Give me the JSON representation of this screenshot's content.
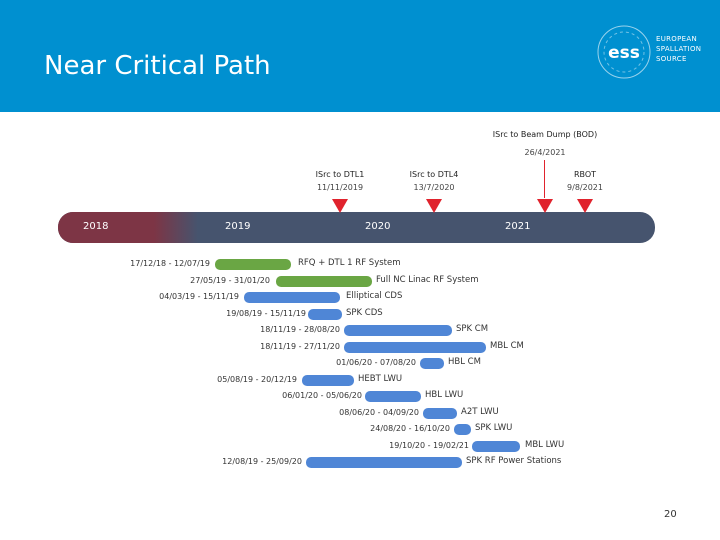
{
  "slide": {
    "title": "Near Critical Path",
    "logo_text": "EUROPEAN SPALLATION SOURCE",
    "logo_wordmark": "ess",
    "page_number": "20"
  },
  "colors": {
    "header": "#0090d0",
    "timeline": "#46546e",
    "timeline_past": "#7d3545",
    "milestone": "#e0232d",
    "bar_complete": "#6aa644",
    "bar_planned": "#4f86d6"
  },
  "timeline": {
    "years": [
      "2018",
      "2019",
      "2020",
      "2021"
    ]
  },
  "milestones": [
    {
      "name": "ISrc to DTL1",
      "date": "11/11/2019"
    },
    {
      "name": "ISrc to DTL4",
      "date": "13/7/2020"
    },
    {
      "name": "ISrc to Beam Dump (BOD)",
      "date": "26/4/2021"
    },
    {
      "name": "RBOT",
      "date": "9/8/2021"
    }
  ],
  "tasks": [
    {
      "dates": "17/12/18 - 12/07/19",
      "name": "RFQ + DTL 1 RF System",
      "status": "complete"
    },
    {
      "dates": "27/05/19 - 31/01/20",
      "name": "Full NC Linac RF System",
      "status": "complete"
    },
    {
      "dates": "04/03/19 - 15/11/19",
      "name": "Elliptical CDS",
      "status": "planned"
    },
    {
      "dates": "19/08/19 - 15/11/19",
      "name": "SPK CDS",
      "status": "planned"
    },
    {
      "dates": "18/11/19 - 28/08/20",
      "name": "SPK CM",
      "status": "planned"
    },
    {
      "dates": "18/11/19 - 27/11/20",
      "name": "MBL CM",
      "status": "planned"
    },
    {
      "dates": "01/06/20 - 07/08/20",
      "name": "HBL CM",
      "status": "planned"
    },
    {
      "dates": "05/08/19 - 20/12/19",
      "name": "HEBT LWU",
      "status": "planned"
    },
    {
      "dates": "06/01/20 - 05/06/20",
      "name": "HBL LWU",
      "status": "planned"
    },
    {
      "dates": "08/06/20 - 04/09/20",
      "name": "A2T LWU",
      "status": "planned"
    },
    {
      "dates": "24/08/20 - 16/10/20",
      "name": "SPK LWU",
      "status": "planned"
    },
    {
      "dates": "19/10/20 - 19/02/21",
      "name": "MBL LWU",
      "status": "planned"
    },
    {
      "dates": "12/08/19 - 25/09/20",
      "name": "SPK RF Power Stations",
      "status": "planned"
    }
  ]
}
